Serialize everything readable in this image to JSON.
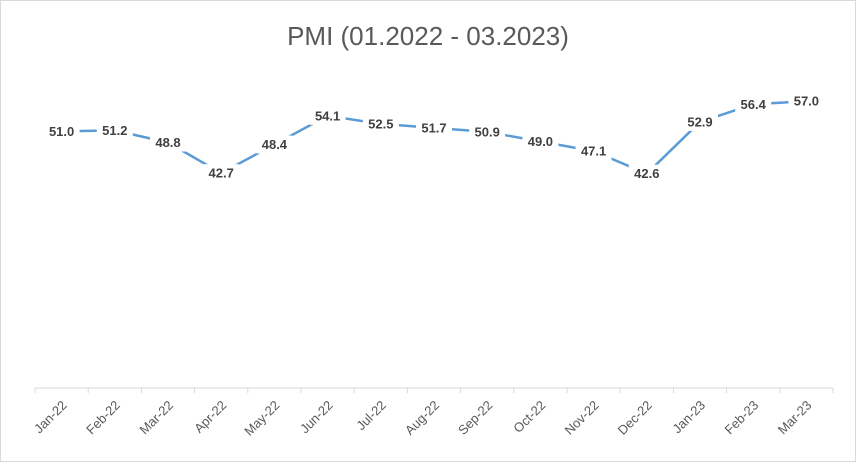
{
  "chart_data": {
    "type": "line",
    "title": "PMI (01.2022 - 03.2023)",
    "xlabel": "",
    "ylabel": "",
    "categories": [
      "Jan-22",
      "Feb-22",
      "Mar-22",
      "Apr-22",
      "May-22",
      "Jun-22",
      "Jul-22",
      "Aug-22",
      "Sep-22",
      "Oct-22",
      "Nov-22",
      "Dec-22",
      "Jan-23",
      "Feb-23",
      "Mar-23"
    ],
    "series": [
      {
        "name": "PMI",
        "values": [
          51.0,
          51.2,
          48.8,
          42.7,
          48.4,
          54.1,
          52.5,
          51.7,
          50.9,
          49.0,
          47.1,
          42.6,
          52.9,
          56.4,
          57.0
        ],
        "labels": [
          "51.0",
          "51.2",
          "48.8",
          "42.7",
          "48.4",
          "54.1",
          "52.5",
          "51.7",
          "50.9",
          "49.0",
          "47.1",
          "42.6",
          "52.9",
          "56.4",
          "57.0"
        ],
        "color": "#5b9bd5"
      }
    ],
    "ylim": [
      0,
      65
    ],
    "grid": false,
    "legend": "none"
  }
}
